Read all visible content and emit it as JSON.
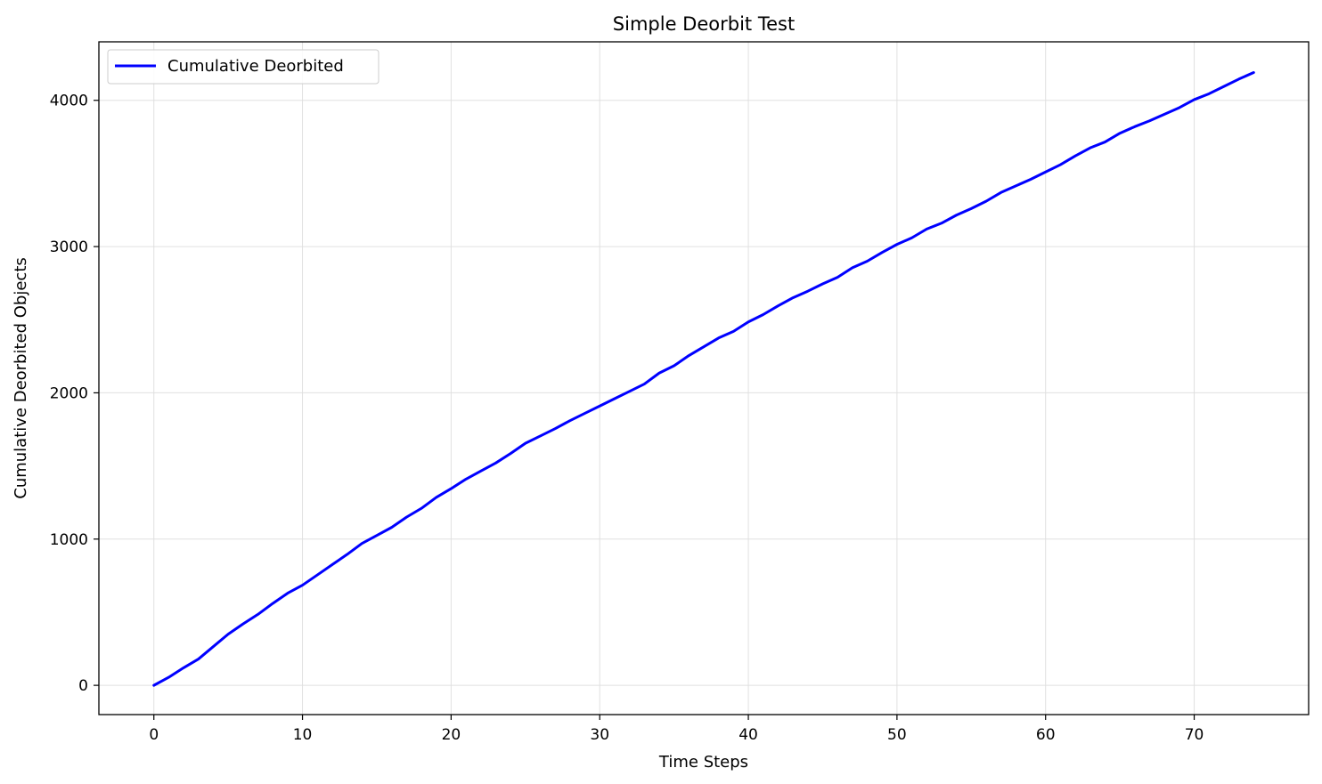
{
  "chart_data": {
    "type": "line",
    "title": "Simple Deorbit Test",
    "xlabel": "Time Steps",
    "ylabel": "Cumulative Deorbited Objects",
    "xlim": [
      -3.7,
      77.7
    ],
    "ylim": [
      -200,
      4400
    ],
    "xticks": [
      0,
      10,
      20,
      30,
      40,
      50,
      60,
      70
    ],
    "yticks": [
      0,
      1000,
      2000,
      3000,
      4000
    ],
    "grid": true,
    "legend_position": "upper-left",
    "series": [
      {
        "name": "Cumulative Deorbited",
        "color": "#0000ff",
        "x": [
          0,
          1,
          2,
          3,
          4,
          5,
          6,
          7,
          8,
          9,
          10,
          11,
          12,
          13,
          14,
          15,
          16,
          17,
          18,
          19,
          20,
          21,
          22,
          23,
          24,
          25,
          26,
          27,
          28,
          29,
          30,
          31,
          32,
          33,
          34,
          35,
          36,
          37,
          38,
          39,
          40,
          41,
          42,
          43,
          44,
          45,
          46,
          47,
          48,
          49,
          50,
          51,
          52,
          53,
          54,
          55,
          56,
          57,
          58,
          59,
          60,
          61,
          62,
          63,
          64,
          65,
          66,
          67,
          68,
          69,
          70,
          71,
          72,
          73,
          74
        ],
        "y": [
          0,
          55,
          120,
          180,
          265,
          350,
          420,
          485,
          560,
          630,
          685,
          755,
          825,
          895,
          970,
          1025,
          1080,
          1150,
          1210,
          1285,
          1345,
          1410,
          1465,
          1520,
          1585,
          1655,
          1705,
          1755,
          1810,
          1860,
          1910,
          1960,
          2010,
          2060,
          2135,
          2185,
          2255,
          2315,
          2375,
          2420,
          2485,
          2535,
          2595,
          2650,
          2695,
          2745,
          2790,
          2855,
          2900,
          2960,
          3015,
          3060,
          3120,
          3160,
          3215,
          3260,
          3310,
          3370,
          3415,
          3460,
          3510,
          3560,
          3620,
          3675,
          3715,
          3775,
          3820,
          3860,
          3905,
          3950,
          4005,
          4045,
          4095,
          4145,
          4190
        ]
      }
    ]
  }
}
